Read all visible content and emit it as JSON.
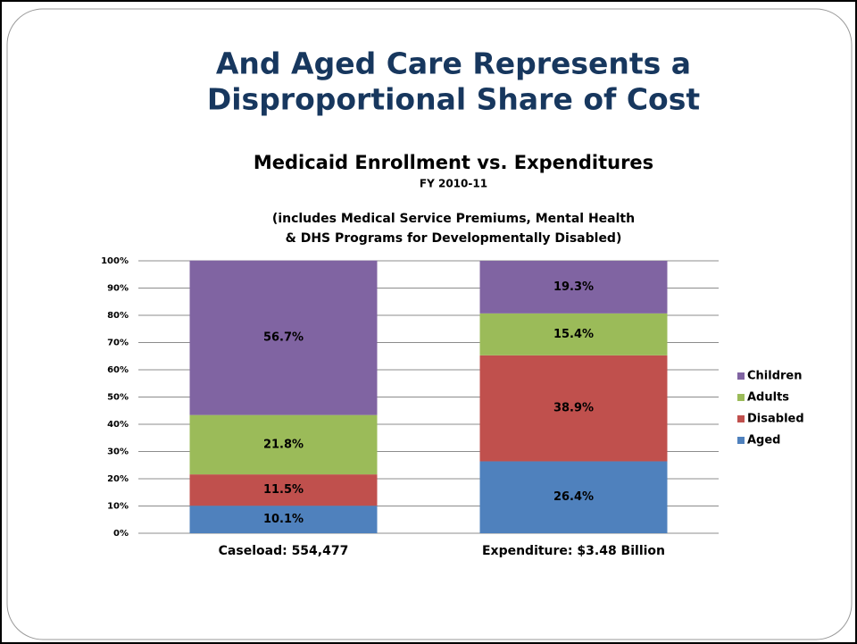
{
  "slide": {
    "title": [
      "And Aged Care Represents a",
      "Disproportional Share of Cost"
    ]
  },
  "chart_data": {
    "type": "stacked_bar",
    "title": "Medicaid Enrollment vs. Expenditures",
    "subtitle": "FY 2010-11",
    "note": [
      "(includes Medical Service Premiums, Mental Health",
      "& DHS Programs for Developmentally Disabled)"
    ],
    "categories": [
      "Caseload: 554,477",
      "Expenditure: $3.48 Billion"
    ],
    "series": [
      {
        "name": "Aged",
        "color": "#4f81bd",
        "values": [
          10.1,
          26.4
        ],
        "value_labels": [
          "10.1%",
          "26.4%"
        ]
      },
      {
        "name": "Disabled",
        "color": "#c0504d",
        "values": [
          11.5,
          38.9
        ],
        "value_labels": [
          "11.5%",
          "38.9%"
        ]
      },
      {
        "name": "Adults",
        "color": "#9bbb59",
        "values": [
          21.8,
          15.4
        ],
        "value_labels": [
          "21.8%",
          "15.4%"
        ]
      },
      {
        "name": "Children",
        "color": "#8064a2",
        "values": [
          56.7,
          19.3
        ],
        "value_labels": [
          "56.7%",
          "19.3%"
        ]
      }
    ],
    "ylim": [
      0,
      100
    ],
    "yticks": [
      {
        "value": 0,
        "label": "0%"
      },
      {
        "value": 10,
        "label": "10%"
      },
      {
        "value": 20,
        "label": "20%"
      },
      {
        "value": 30,
        "label": "30%"
      },
      {
        "value": 40,
        "label": "40%"
      },
      {
        "value": 50,
        "label": "50%"
      },
      {
        "value": 60,
        "label": "60%"
      },
      {
        "value": 70,
        "label": "70%"
      },
      {
        "value": 80,
        "label": "80%"
      },
      {
        "value": 90,
        "label": "90%"
      },
      {
        "value": 100,
        "label": "100%"
      }
    ],
    "grid": true,
    "legend": "right"
  }
}
